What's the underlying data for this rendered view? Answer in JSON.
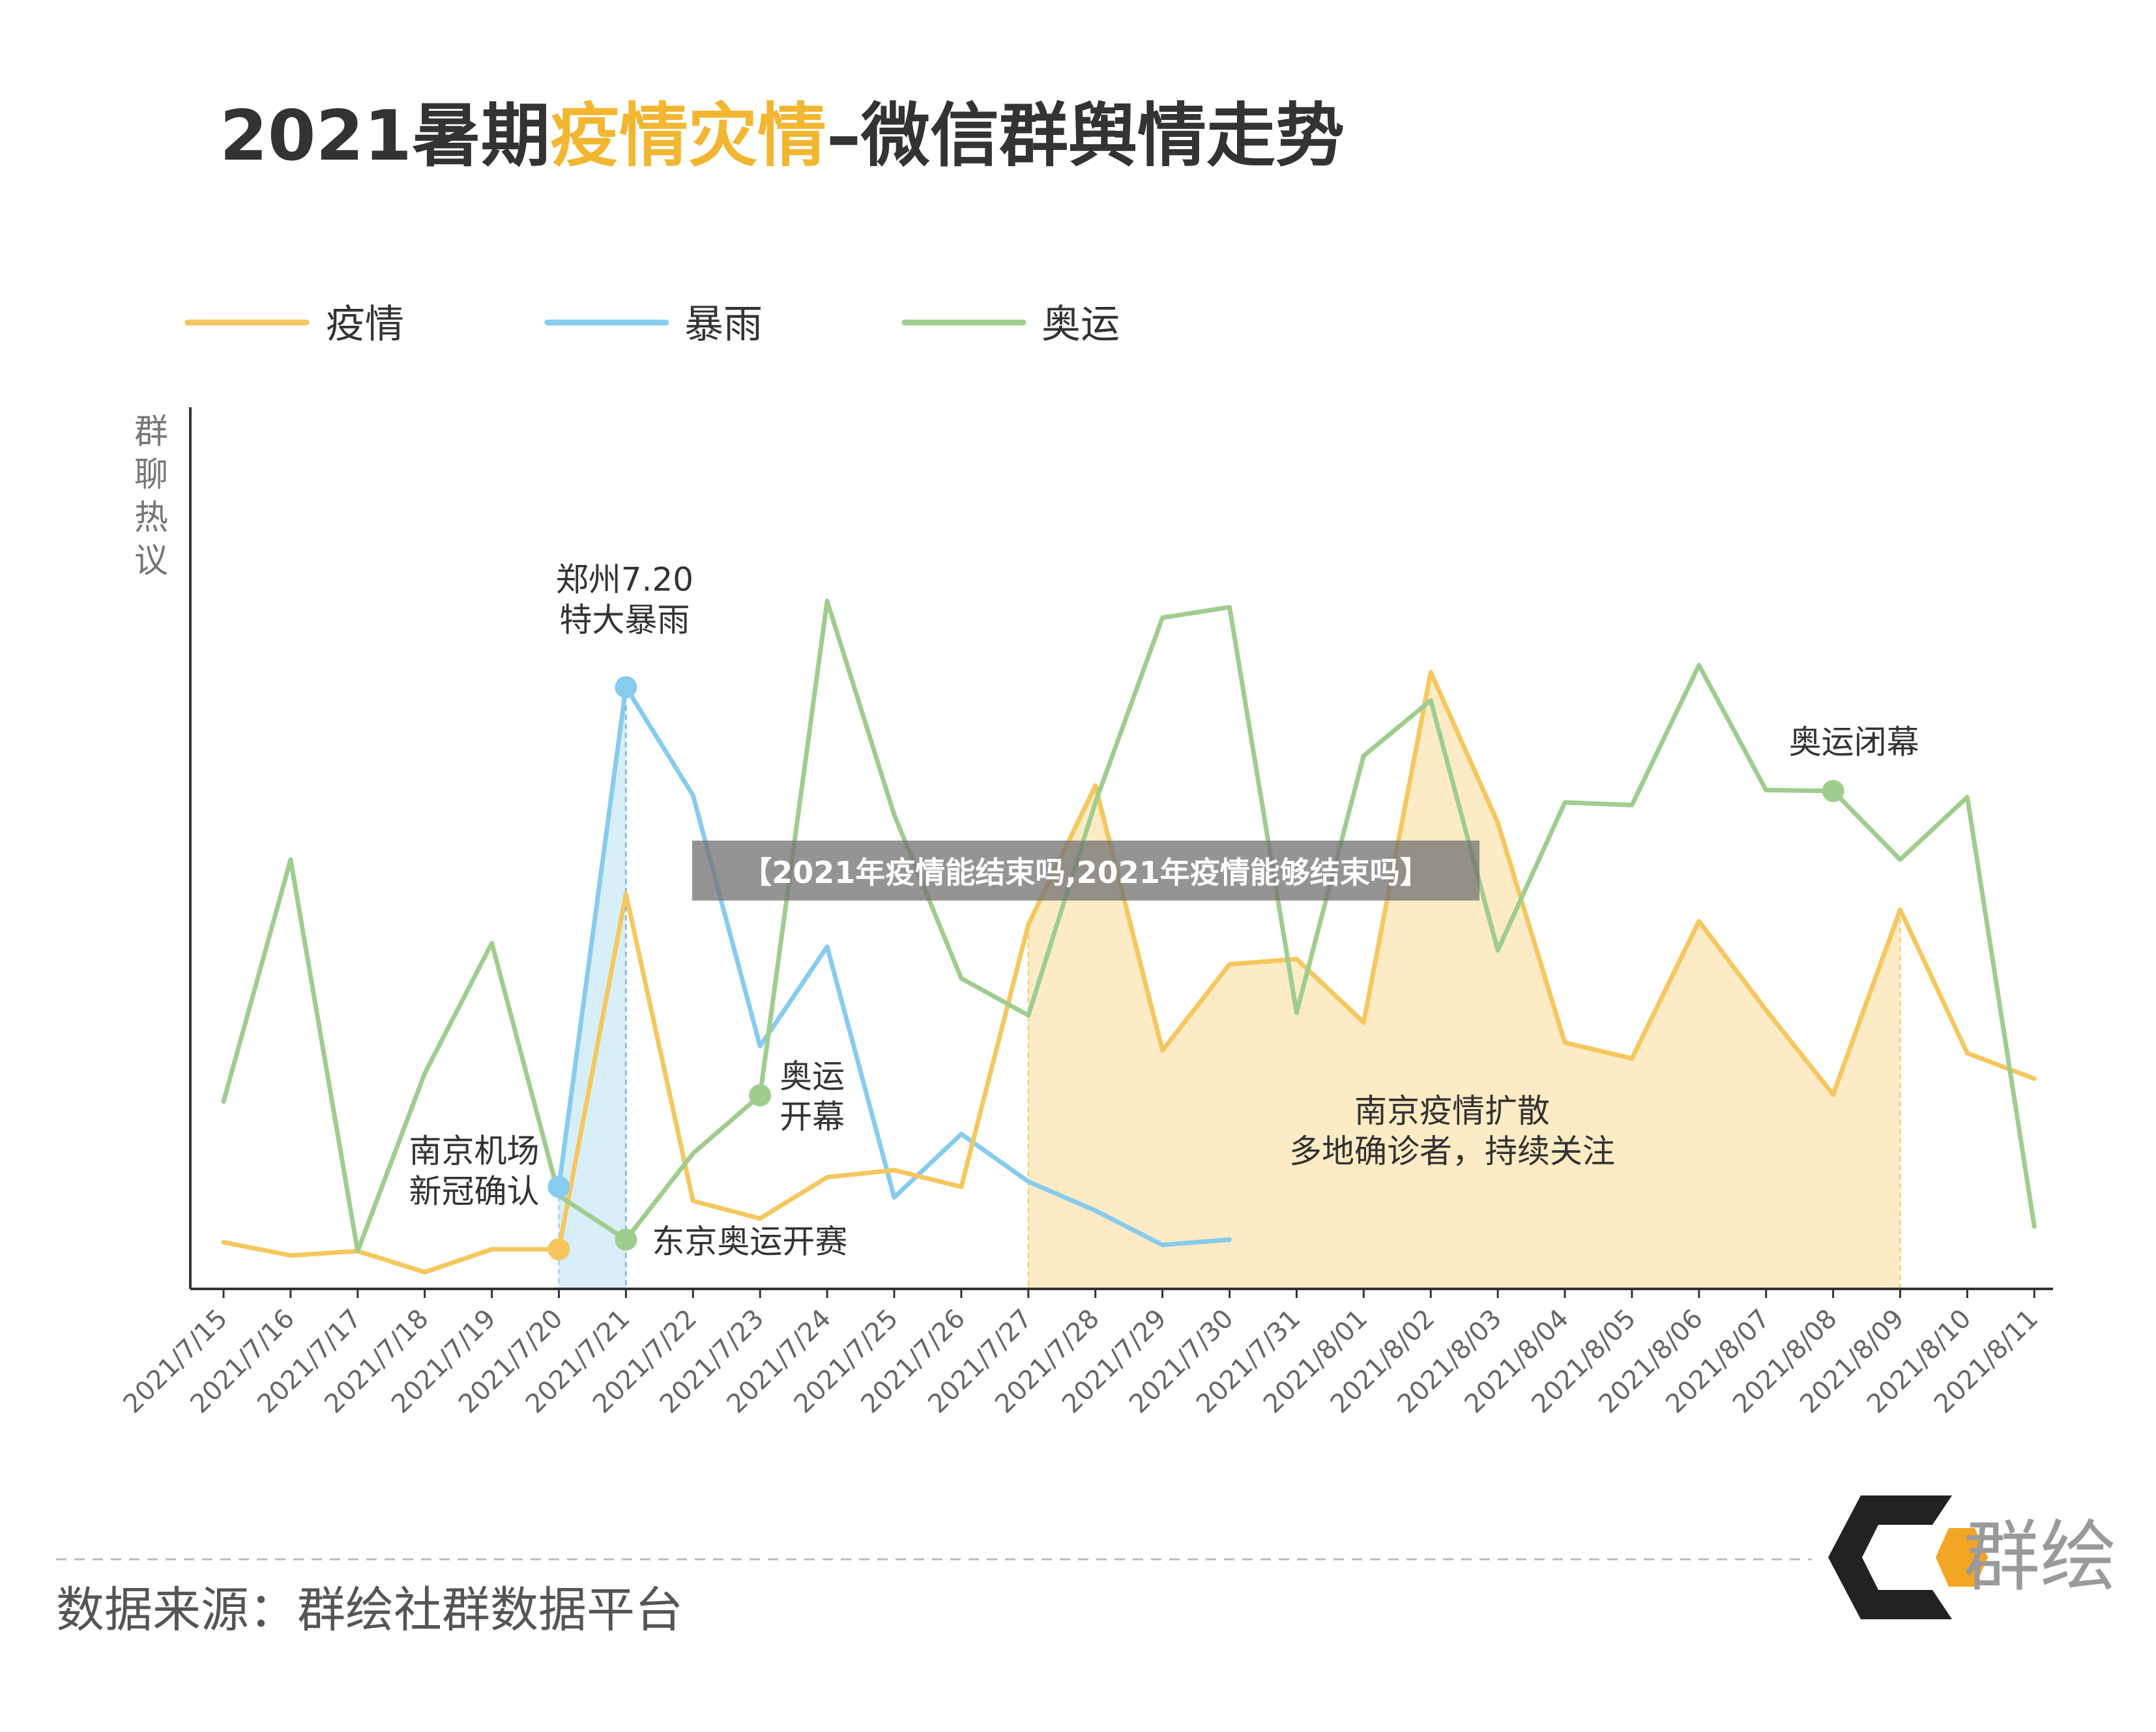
{
  "title": {
    "part1": "2021暑期",
    "part2": "疫情灾情",
    "part3": "–微信群舆情走势"
  },
  "legend": [
    "疫情",
    "暴雨",
    "奥运"
  ],
  "ylabel": "群聊热议",
  "banner": "【2021年疫情能结束吗,2021年疫情能够结束吗】",
  "footer": {
    "source": "数据来源：群绘社群数据平台",
    "logo_text": "群绘"
  },
  "colors": {
    "epidemic": "#F5C75E",
    "rainstorm": "#86CCEE",
    "olympics": "#9FCD8E",
    "title_dark": "#333333",
    "title_accent": "#F2B630",
    "epidemic_fill": "#FCEBC4",
    "rainstorm_fill": "#D8EEF9"
  },
  "chart_data": {
    "type": "line",
    "categories": [
      "2021/7/15",
      "2021/7/16",
      "2021/7/17",
      "2021/7/18",
      "2021/7/19",
      "2021/7/20",
      "2021/7/21",
      "2021/7/22",
      "2021/7/23",
      "2021/7/24",
      "2021/7/25",
      "2021/7/26",
      "2021/7/27",
      "2021/7/28",
      "2021/7/29",
      "2021/7/30",
      "2021/7/31",
      "2021/8/01",
      "2021/8/02",
      "2021/8/03",
      "2021/8/04",
      "2021/8/05",
      "2021/8/06",
      "2021/8/07",
      "2021/8/08",
      "2021/8/09",
      "2021/8/10",
      "2021/8/11"
    ],
    "ylabel": "群聊热议",
    "ylim": [
      0,
      100
    ],
    "grid": false,
    "legend_position": "top-left",
    "series": [
      {
        "name": "疫情",
        "values": [
          5.3,
          3.8,
          4.3,
          1.9,
          4.5,
          4.5,
          44.9,
          10.0,
          8.0,
          12.7,
          13.5,
          11.6,
          41.4,
          57.2,
          27.1,
          36.9,
          37.5,
          30.3,
          70.1,
          53.0,
          28.0,
          26.2,
          41.8,
          31.7,
          22.1,
          43.1,
          26.8,
          23.9
        ]
      },
      {
        "name": "暴雨",
        "values": [
          null,
          null,
          null,
          null,
          null,
          11.6,
          68.4,
          56.1,
          27.6,
          38.9,
          10.4,
          17.6,
          12.2,
          8.9,
          5.0,
          5.6,
          null,
          null,
          null,
          null,
          null,
          null,
          null,
          null,
          null,
          null,
          null,
          null
        ]
      },
      {
        "name": "奥运",
        "values": [
          21.3,
          48.8,
          4.3,
          24.5,
          39.3,
          10.6,
          5.6,
          15.4,
          22.0,
          78.2,
          53.9,
          35.3,
          31.1,
          55.3,
          76.3,
          77.5,
          31.4,
          60.6,
          66.9,
          38.5,
          55.3,
          55.0,
          70.9,
          56.7,
          56.6,
          48.8,
          55.9,
          7.1
        ]
      }
    ],
    "highlights": [
      {
        "series": "暴雨",
        "from": "2021/7/20",
        "to": "2021/7/21"
      },
      {
        "series": "疫情",
        "from": "2021/7/27",
        "to": "2021/8/09"
      }
    ],
    "annotations": [
      {
        "lines": [
          "郑州7.20",
          "特大暴雨"
        ],
        "series": "暴雨",
        "at": "2021/7/21"
      },
      {
        "lines": [
          "南京机场",
          "新冠确认"
        ],
        "series": "暴雨",
        "at": "2021/7/20"
      },
      {
        "lines": [
          "东京奥运开赛"
        ],
        "series": "奥运",
        "at": "2021/7/21"
      },
      {
        "lines": [
          "奥运",
          "开幕"
        ],
        "series": "奥运",
        "at": "2021/7/23"
      },
      {
        "lines": [
          "南京疫情扩散",
          "多地确诊者，持续关注"
        ],
        "series": "疫情",
        "at": "2021/8/01"
      },
      {
        "lines": [
          "奥运闭幕"
        ],
        "series": "奥运",
        "at": "2021/8/08"
      }
    ]
  }
}
